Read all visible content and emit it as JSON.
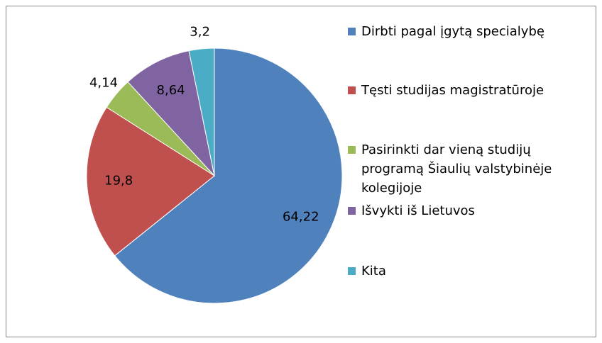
{
  "chart_data": {
    "type": "pie",
    "categories": [
      "Dirbti pagal įgytą specialybę",
      "Tęsti studijas magistratūroje",
      "Pasirinkti dar vieną studijų programą Šiaulių valstybinėje kolegijoje",
      "Išvykti iš Lietuvos",
      "Kita"
    ],
    "values": [
      64.22,
      19.8,
      4.14,
      8.64,
      3.2
    ],
    "value_labels": [
      "64,22",
      "19,8",
      "4,14",
      "8,64",
      "3,2"
    ],
    "colors": [
      "#4f81bd",
      "#c0504d",
      "#9bbb59",
      "#8064a2",
      "#4bacc6"
    ],
    "legend": "right"
  }
}
